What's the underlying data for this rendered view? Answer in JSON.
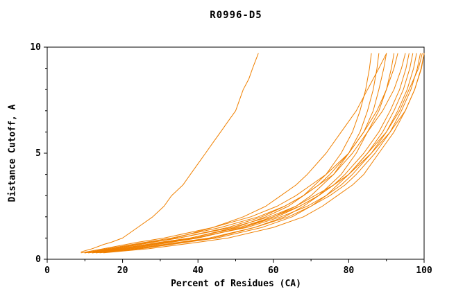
{
  "chart_data": {
    "type": "line",
    "title": "R0996-D5",
    "xlabel": "Percent of Residues (CA)",
    "ylabel": "Distance Cutoff, A",
    "xlim": [
      0,
      100
    ],
    "ylim": [
      0,
      10
    ],
    "x_ticks": [
      0,
      20,
      40,
      60,
      80,
      100
    ],
    "x_minor_ticks": [
      10,
      30,
      50,
      70,
      90
    ],
    "y_ticks": [
      0,
      5,
      10
    ],
    "y_minor_ticks": [
      1,
      2,
      3,
      4,
      6,
      7,
      8,
      9
    ],
    "grid": false,
    "legend": "none",
    "series_color": "#f08000",
    "frame_color": "#000000",
    "series": [
      {
        "points": [
          [
            9,
            0.35
          ],
          [
            12,
            0.5
          ],
          [
            15,
            0.7
          ],
          [
            17,
            0.8
          ],
          [
            20,
            1.0
          ],
          [
            24,
            1.5
          ],
          [
            28,
            2.0
          ],
          [
            31,
            2.5
          ],
          [
            33,
            3.0
          ],
          [
            36,
            3.5
          ],
          [
            38,
            4.0
          ],
          [
            40,
            4.5
          ],
          [
            42,
            5.0
          ],
          [
            44,
            5.5
          ],
          [
            46,
            6.0
          ],
          [
            48,
            6.5
          ],
          [
            50,
            7.0
          ],
          [
            52,
            8.0
          ],
          [
            53.5,
            8.5
          ],
          [
            54.5,
            9.0
          ],
          [
            56,
            9.7
          ]
        ]
      },
      {
        "points": [
          [
            10,
            0.3
          ],
          [
            20,
            0.5
          ],
          [
            30,
            0.8
          ],
          [
            38,
            1.0
          ],
          [
            50,
            1.5
          ],
          [
            58,
            2.0
          ],
          [
            64,
            2.5
          ],
          [
            68,
            3.0
          ],
          [
            71,
            3.5
          ],
          [
            74,
            4.0
          ],
          [
            78,
            5.0
          ],
          [
            81,
            6.0
          ],
          [
            83,
            7.0
          ],
          [
            84.5,
            8.0
          ],
          [
            85.5,
            9.0
          ],
          [
            86,
            9.7
          ]
        ]
      },
      {
        "points": [
          [
            12,
            0.3
          ],
          [
            22,
            0.5
          ],
          [
            33,
            0.8
          ],
          [
            40,
            1.0
          ],
          [
            52,
            1.5
          ],
          [
            60,
            2.0
          ],
          [
            66,
            2.5
          ],
          [
            70,
            3.0
          ],
          [
            73,
            3.5
          ],
          [
            76,
            4.0
          ],
          [
            80,
            5.0
          ],
          [
            83,
            6.0
          ],
          [
            85,
            7.0
          ],
          [
            86.5,
            8.0
          ],
          [
            87.5,
            9.0
          ],
          [
            88,
            9.7
          ]
        ]
      },
      {
        "points": [
          [
            11,
            0.3
          ],
          [
            18,
            0.5
          ],
          [
            28,
            0.8
          ],
          [
            35,
            1.0
          ],
          [
            48,
            1.5
          ],
          [
            57,
            2.0
          ],
          [
            63,
            2.5
          ],
          [
            68,
            3.0
          ],
          [
            72,
            3.5
          ],
          [
            75,
            4.0
          ],
          [
            80,
            5.0
          ],
          [
            84,
            6.0
          ],
          [
            86.5,
            7.0
          ],
          [
            88,
            8.0
          ],
          [
            89.3,
            9.0
          ],
          [
            90,
            9.7
          ]
        ]
      },
      {
        "points": [
          [
            13,
            0.3
          ],
          [
            24,
            0.5
          ],
          [
            36,
            0.8
          ],
          [
            44,
            1.0
          ],
          [
            55,
            1.5
          ],
          [
            63,
            2.0
          ],
          [
            68,
            2.5
          ],
          [
            72,
            3.0
          ],
          [
            75,
            3.5
          ],
          [
            78,
            4.0
          ],
          [
            82,
            5.0
          ],
          [
            85,
            6.0
          ],
          [
            88,
            7.0
          ],
          [
            90,
            8.0
          ],
          [
            91.3,
            9.0
          ],
          [
            92,
            9.7
          ]
        ]
      },
      {
        "points": [
          [
            10,
            0.3
          ],
          [
            16,
            0.5
          ],
          [
            26,
            0.8
          ],
          [
            33,
            1.0
          ],
          [
            46,
            1.5
          ],
          [
            56,
            2.0
          ],
          [
            63,
            2.5
          ],
          [
            68,
            3.0
          ],
          [
            72,
            3.5
          ],
          [
            76,
            4.0
          ],
          [
            81,
            5.0
          ],
          [
            85,
            6.0
          ],
          [
            89,
            7.0
          ],
          [
            92,
            8.0
          ],
          [
            94,
            9.0
          ],
          [
            95,
            9.7
          ]
        ]
      },
      {
        "points": [
          [
            12,
            0.3
          ],
          [
            21,
            0.5
          ],
          [
            32,
            0.8
          ],
          [
            40,
            1.0
          ],
          [
            52,
            1.5
          ],
          [
            61,
            2.0
          ],
          [
            67,
            2.5
          ],
          [
            72,
            3.0
          ],
          [
            76,
            3.5
          ],
          [
            79,
            4.0
          ],
          [
            84,
            5.0
          ],
          [
            88,
            6.0
          ],
          [
            91,
            7.0
          ],
          [
            93.5,
            8.0
          ],
          [
            95.2,
            9.0
          ],
          [
            96,
            9.7
          ]
        ]
      },
      {
        "points": [
          [
            14,
            0.3
          ],
          [
            25,
            0.5
          ],
          [
            37,
            0.8
          ],
          [
            45,
            1.0
          ],
          [
            57,
            1.5
          ],
          [
            65,
            2.0
          ],
          [
            70,
            2.5
          ],
          [
            74,
            3.0
          ],
          [
            77,
            3.5
          ],
          [
            80,
            4.0
          ],
          [
            85,
            5.0
          ],
          [
            89,
            6.0
          ],
          [
            92,
            7.0
          ],
          [
            94.5,
            8.0
          ],
          [
            96.2,
            9.0
          ],
          [
            97,
            9.7
          ]
        ]
      },
      {
        "points": [
          [
            11,
            0.3
          ],
          [
            19,
            0.5
          ],
          [
            30,
            0.8
          ],
          [
            38,
            1.0
          ],
          [
            51,
            1.5
          ],
          [
            60,
            2.0
          ],
          [
            67,
            2.5
          ],
          [
            72,
            3.0
          ],
          [
            76,
            3.5
          ],
          [
            80,
            4.0
          ],
          [
            85,
            5.0
          ],
          [
            90,
            6.0
          ],
          [
            93,
            7.0
          ],
          [
            95.5,
            8.0
          ],
          [
            97.2,
            9.0
          ],
          [
            98,
            9.7
          ]
        ]
      },
      {
        "points": [
          [
            13,
            0.3
          ],
          [
            23,
            0.5
          ],
          [
            35,
            0.8
          ],
          [
            43,
            1.0
          ],
          [
            55,
            1.5
          ],
          [
            64,
            2.0
          ],
          [
            70,
            2.5
          ],
          [
            75,
            3.0
          ],
          [
            79,
            3.5
          ],
          [
            82,
            4.0
          ],
          [
            87,
            5.0
          ],
          [
            91,
            6.0
          ],
          [
            94,
            7.0
          ],
          [
            96.5,
            8.0
          ],
          [
            98.2,
            9.0
          ],
          [
            99,
            9.7
          ]
        ]
      },
      {
        "points": [
          [
            10,
            0.3
          ],
          [
            17,
            0.5
          ],
          [
            27,
            0.8
          ],
          [
            35,
            1.0
          ],
          [
            49,
            1.5
          ],
          [
            59,
            2.0
          ],
          [
            66,
            2.5
          ],
          [
            71,
            3.0
          ],
          [
            76,
            3.5
          ],
          [
            80,
            4.0
          ],
          [
            86,
            5.0
          ],
          [
            91,
            6.0
          ],
          [
            95,
            7.0
          ],
          [
            97.5,
            8.0
          ],
          [
            99.2,
            9.0
          ],
          [
            100,
            9.7
          ]
        ]
      },
      {
        "points": [
          [
            15,
            0.3
          ],
          [
            27,
            0.5
          ],
          [
            40,
            0.8
          ],
          [
            48,
            1.0
          ],
          [
            60,
            1.5
          ],
          [
            68,
            2.0
          ],
          [
            73,
            2.5
          ],
          [
            77,
            3.0
          ],
          [
            81,
            3.5
          ],
          [
            84,
            4.0
          ],
          [
            88,
            5.0
          ],
          [
            92,
            6.0
          ],
          [
            95,
            7.0
          ],
          [
            97.5,
            8.0
          ],
          [
            99.3,
            9.0
          ],
          [
            100,
            9.7
          ]
        ]
      },
      {
        "points": [
          [
            9,
            0.3
          ],
          [
            15,
            0.5
          ],
          [
            24,
            0.8
          ],
          [
            31,
            1.0
          ],
          [
            44,
            1.5
          ],
          [
            54,
            2.0
          ],
          [
            61,
            2.5
          ],
          [
            66,
            3.0
          ],
          [
            70,
            3.5
          ],
          [
            74,
            4.0
          ],
          [
            80,
            5.0
          ],
          [
            84,
            6.0
          ],
          [
            87.5,
            7.0
          ],
          [
            90,
            8.0
          ],
          [
            92,
            9.0
          ],
          [
            93,
            9.7
          ]
        ]
      },
      {
        "points": [
          [
            10,
            0.3
          ],
          [
            18,
            0.5
          ],
          [
            28,
            0.8
          ],
          [
            34,
            1.0
          ],
          [
            44,
            1.5
          ],
          [
            52,
            2.0
          ],
          [
            58,
            2.5
          ],
          [
            62,
            3.0
          ],
          [
            66,
            3.5
          ],
          [
            69,
            4.0
          ],
          [
            74,
            5.0
          ],
          [
            78,
            6.0
          ],
          [
            82,
            7.0
          ],
          [
            85,
            8.0
          ],
          [
            88,
            9.0
          ],
          [
            90,
            9.7
          ]
        ]
      },
      {
        "points": [
          [
            12,
            0.3
          ],
          [
            20,
            0.5
          ],
          [
            31,
            0.8
          ],
          [
            39,
            1.0
          ],
          [
            53,
            1.5
          ],
          [
            62,
            2.0
          ],
          [
            69,
            2.5
          ],
          [
            74,
            3.0
          ],
          [
            78,
            3.5
          ],
          [
            81,
            4.0
          ],
          [
            86,
            5.0
          ],
          [
            90,
            6.0
          ],
          [
            93.5,
            7.0
          ],
          [
            96,
            8.0
          ],
          [
            98.5,
            9.0
          ],
          [
            99.5,
            9.7
          ]
        ]
      }
    ]
  }
}
